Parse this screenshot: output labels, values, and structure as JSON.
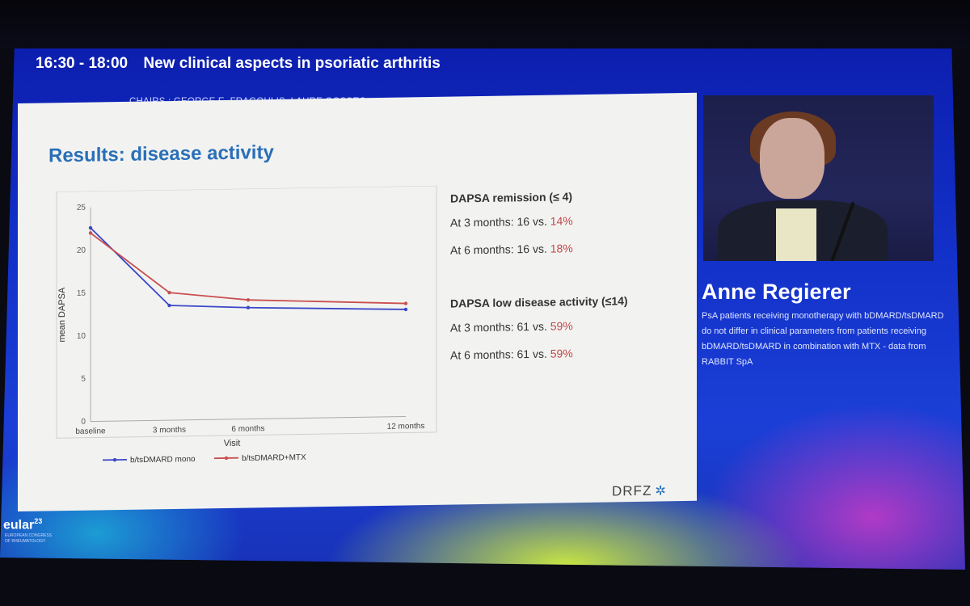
{
  "session": {
    "time": "16:30 - 18:00",
    "title": "New clinical aspects in psoriatic arthritis"
  },
  "chairs": "CHAIRS : GEORGE E. FRAGOULIS, LAURE GOSSEC",
  "slide": {
    "title": "Results: disease activity",
    "stats": {
      "remission_head": "DAPSA remission (≤ 4)",
      "remission_3m_prefix": "At 3 months: 16 vs. ",
      "remission_3m_red": "14%",
      "remission_6m_prefix": "At 6 months: 16 vs. ",
      "remission_6m_red": "18%",
      "lda_head": "DAPSA low disease activity (≤14)",
      "lda_3m_prefix": "At 3 months: 61 vs. ",
      "lda_3m_red": "59%",
      "lda_6m_prefix": "At 6 months: 61 vs. ",
      "lda_6m_red": "59%"
    },
    "logo": "DRFZ"
  },
  "speaker": {
    "name": "Anne Regierer",
    "description": "PsA patients receiving monotherapy with bDMARD/tsDMARD do not differ in clinical parameters from patients receiving bDMARD/tsDMARD in combination with MTX - data from RABBIT SpA"
  },
  "eular": {
    "name": "eular",
    "year": "23",
    "sub": "EUROPEAN CONGRESS OF RHEUMATOLOGY"
  },
  "chart_data": {
    "type": "line",
    "xlabel": "Visit",
    "ylabel": "mean DAPSA",
    "x": [
      "baseline",
      "3 months",
      "6 months",
      "12 months"
    ],
    "x_months": [
      0,
      3,
      6,
      12
    ],
    "ylim": [
      0,
      25
    ],
    "yticks": [
      0,
      5,
      10,
      15,
      20,
      25
    ],
    "grid": false,
    "legend_position": "bottom",
    "series": [
      {
        "name": "b/tsDMARD mono",
        "color": "#3b47c8",
        "values": [
          22.6,
          13.4,
          13.0,
          12.5
        ]
      },
      {
        "name": "b/tsDMARD+MTX",
        "color": "#c9504f",
        "values": [
          22.0,
          14.9,
          13.9,
          13.2
        ]
      }
    ]
  }
}
